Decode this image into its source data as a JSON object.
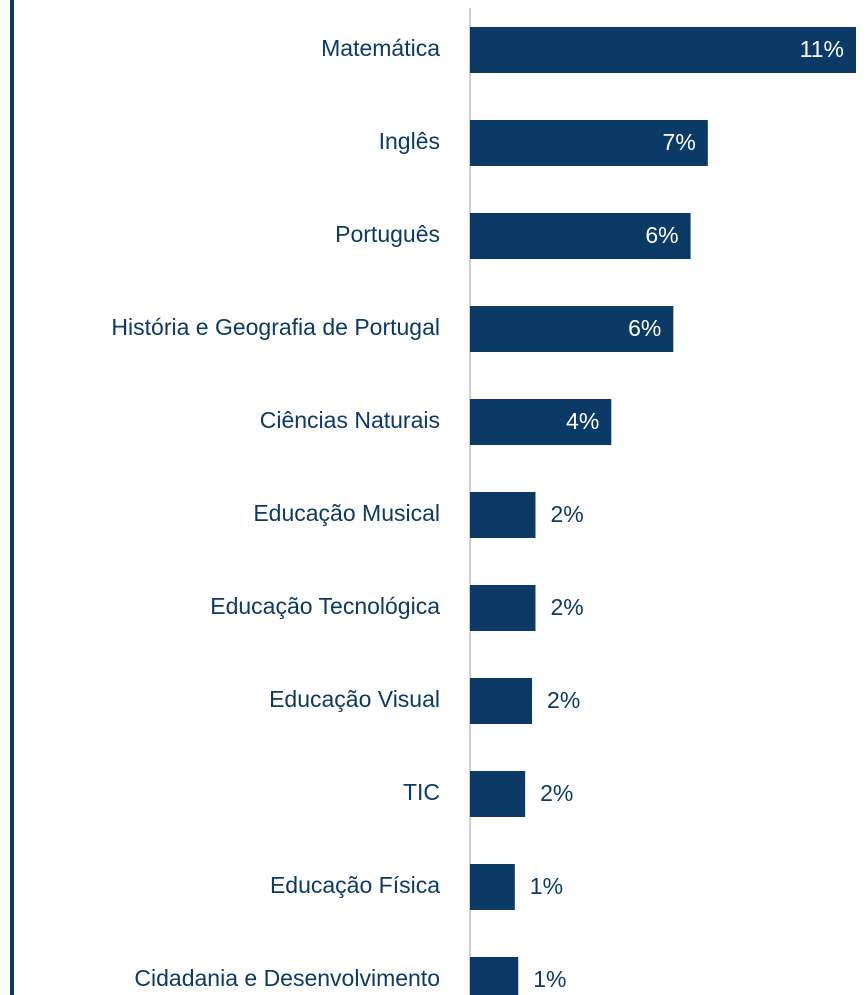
{
  "chart_data": {
    "type": "bar",
    "orientation": "horizontal",
    "categories": [
      "Matemática",
      "Inglês",
      "Português",
      "História e Geografia de Portugal",
      "Ciências Naturais",
      "Educação Musical",
      "Educação Tecnológica",
      "Educação Visual",
      "TIC",
      "Educação Física",
      "Cidadania e Desenvolvimento"
    ],
    "values": [
      11.2,
      6.9,
      6.4,
      5.9,
      4.1,
      1.9,
      1.9,
      1.8,
      1.6,
      1.3,
      1.4
    ],
    "value_labels": [
      "11%",
      "7%",
      "6%",
      "6%",
      "4%",
      "2%",
      "2%",
      "2%",
      "2%",
      "1%",
      "1%"
    ],
    "color": "#0b3a66",
    "xlim": [
      0,
      11.2
    ]
  }
}
